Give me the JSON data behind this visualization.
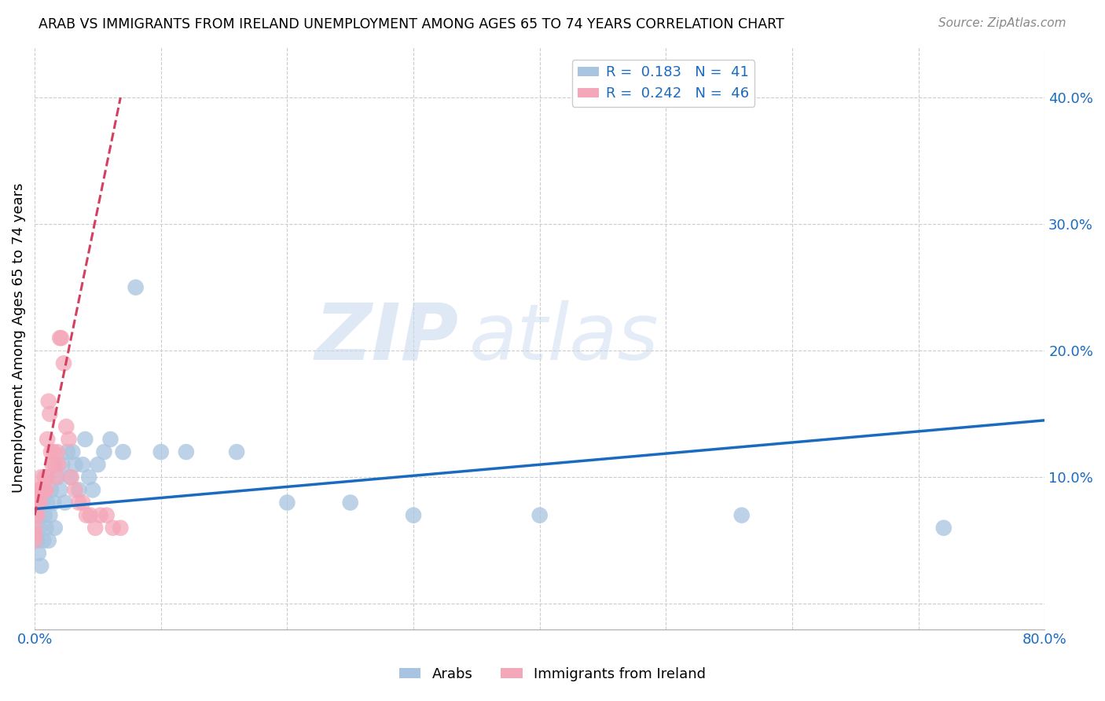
{
  "title": "ARAB VS IMMIGRANTS FROM IRELAND UNEMPLOYMENT AMONG AGES 65 TO 74 YEARS CORRELATION CHART",
  "source": "Source: ZipAtlas.com",
  "ylabel": "Unemployment Among Ages 65 to 74 years",
  "xlim": [
    0.0,
    0.8
  ],
  "ylim": [
    -0.02,
    0.44
  ],
  "xticks": [
    0.0,
    0.1,
    0.2,
    0.3,
    0.4,
    0.5,
    0.6,
    0.7,
    0.8
  ],
  "xtick_labels": [
    "0.0%",
    "",
    "",
    "",
    "",
    "",
    "",
    "",
    "80.0%"
  ],
  "ytick_labels_right": [
    "",
    "10.0%",
    "20.0%",
    "30.0%",
    "40.0%"
  ],
  "arab_R": 0.183,
  "arab_N": 41,
  "ireland_R": 0.242,
  "ireland_N": 46,
  "arab_color": "#a8c4e0",
  "ireland_color": "#f4a7b9",
  "arab_line_color": "#1a6bbf",
  "ireland_line_color": "#d44060",
  "legend_label_arab": "Arabs",
  "legend_label_ireland": "Immigrants from Ireland",
  "watermark_zip": "ZIP",
  "watermark_atlas": "atlas",
  "arab_x": [
    0.002,
    0.003,
    0.004,
    0.005,
    0.006,
    0.007,
    0.008,
    0.009,
    0.01,
    0.011,
    0.012,
    0.013,
    0.015,
    0.016,
    0.018,
    0.02,
    0.022,
    0.024,
    0.026,
    0.028,
    0.03,
    0.032,
    0.035,
    0.038,
    0.04,
    0.043,
    0.046,
    0.05,
    0.055,
    0.06,
    0.07,
    0.08,
    0.1,
    0.12,
    0.16,
    0.2,
    0.25,
    0.3,
    0.4,
    0.56,
    0.72
  ],
  "arab_y": [
    0.05,
    0.04,
    0.06,
    0.03,
    0.08,
    0.05,
    0.07,
    0.06,
    0.08,
    0.05,
    0.07,
    0.09,
    0.08,
    0.06,
    0.1,
    0.09,
    0.11,
    0.08,
    0.12,
    0.1,
    0.12,
    0.11,
    0.09,
    0.11,
    0.13,
    0.1,
    0.09,
    0.11,
    0.12,
    0.13,
    0.12,
    0.25,
    0.12,
    0.12,
    0.12,
    0.08,
    0.08,
    0.07,
    0.07,
    0.07,
    0.06
  ],
  "ireland_x": [
    0.0,
    0.0,
    0.0,
    0.001,
    0.001,
    0.002,
    0.002,
    0.003,
    0.003,
    0.004,
    0.004,
    0.005,
    0.005,
    0.006,
    0.007,
    0.007,
    0.008,
    0.008,
    0.009,
    0.01,
    0.01,
    0.011,
    0.012,
    0.013,
    0.014,
    0.015,
    0.016,
    0.017,
    0.018,
    0.019,
    0.02,
    0.021,
    0.023,
    0.025,
    0.027,
    0.029,
    0.032,
    0.035,
    0.038,
    0.041,
    0.044,
    0.048,
    0.052,
    0.057,
    0.062,
    0.068
  ],
  "ireland_y": [
    0.06,
    0.055,
    0.05,
    0.08,
    0.07,
    0.08,
    0.07,
    0.09,
    0.08,
    0.09,
    0.08,
    0.1,
    0.09,
    0.09,
    0.09,
    0.09,
    0.1,
    0.09,
    0.09,
    0.13,
    0.1,
    0.16,
    0.15,
    0.12,
    0.11,
    0.12,
    0.11,
    0.1,
    0.12,
    0.11,
    0.21,
    0.21,
    0.19,
    0.14,
    0.13,
    0.1,
    0.09,
    0.08,
    0.08,
    0.07,
    0.07,
    0.06,
    0.07,
    0.07,
    0.06,
    0.06
  ],
  "arab_trend_x": [
    0.0,
    0.8
  ],
  "arab_trend_y": [
    0.075,
    0.145
  ],
  "ireland_trend_x": [
    0.0,
    0.068
  ],
  "ireland_trend_y": [
    0.07,
    0.4
  ]
}
